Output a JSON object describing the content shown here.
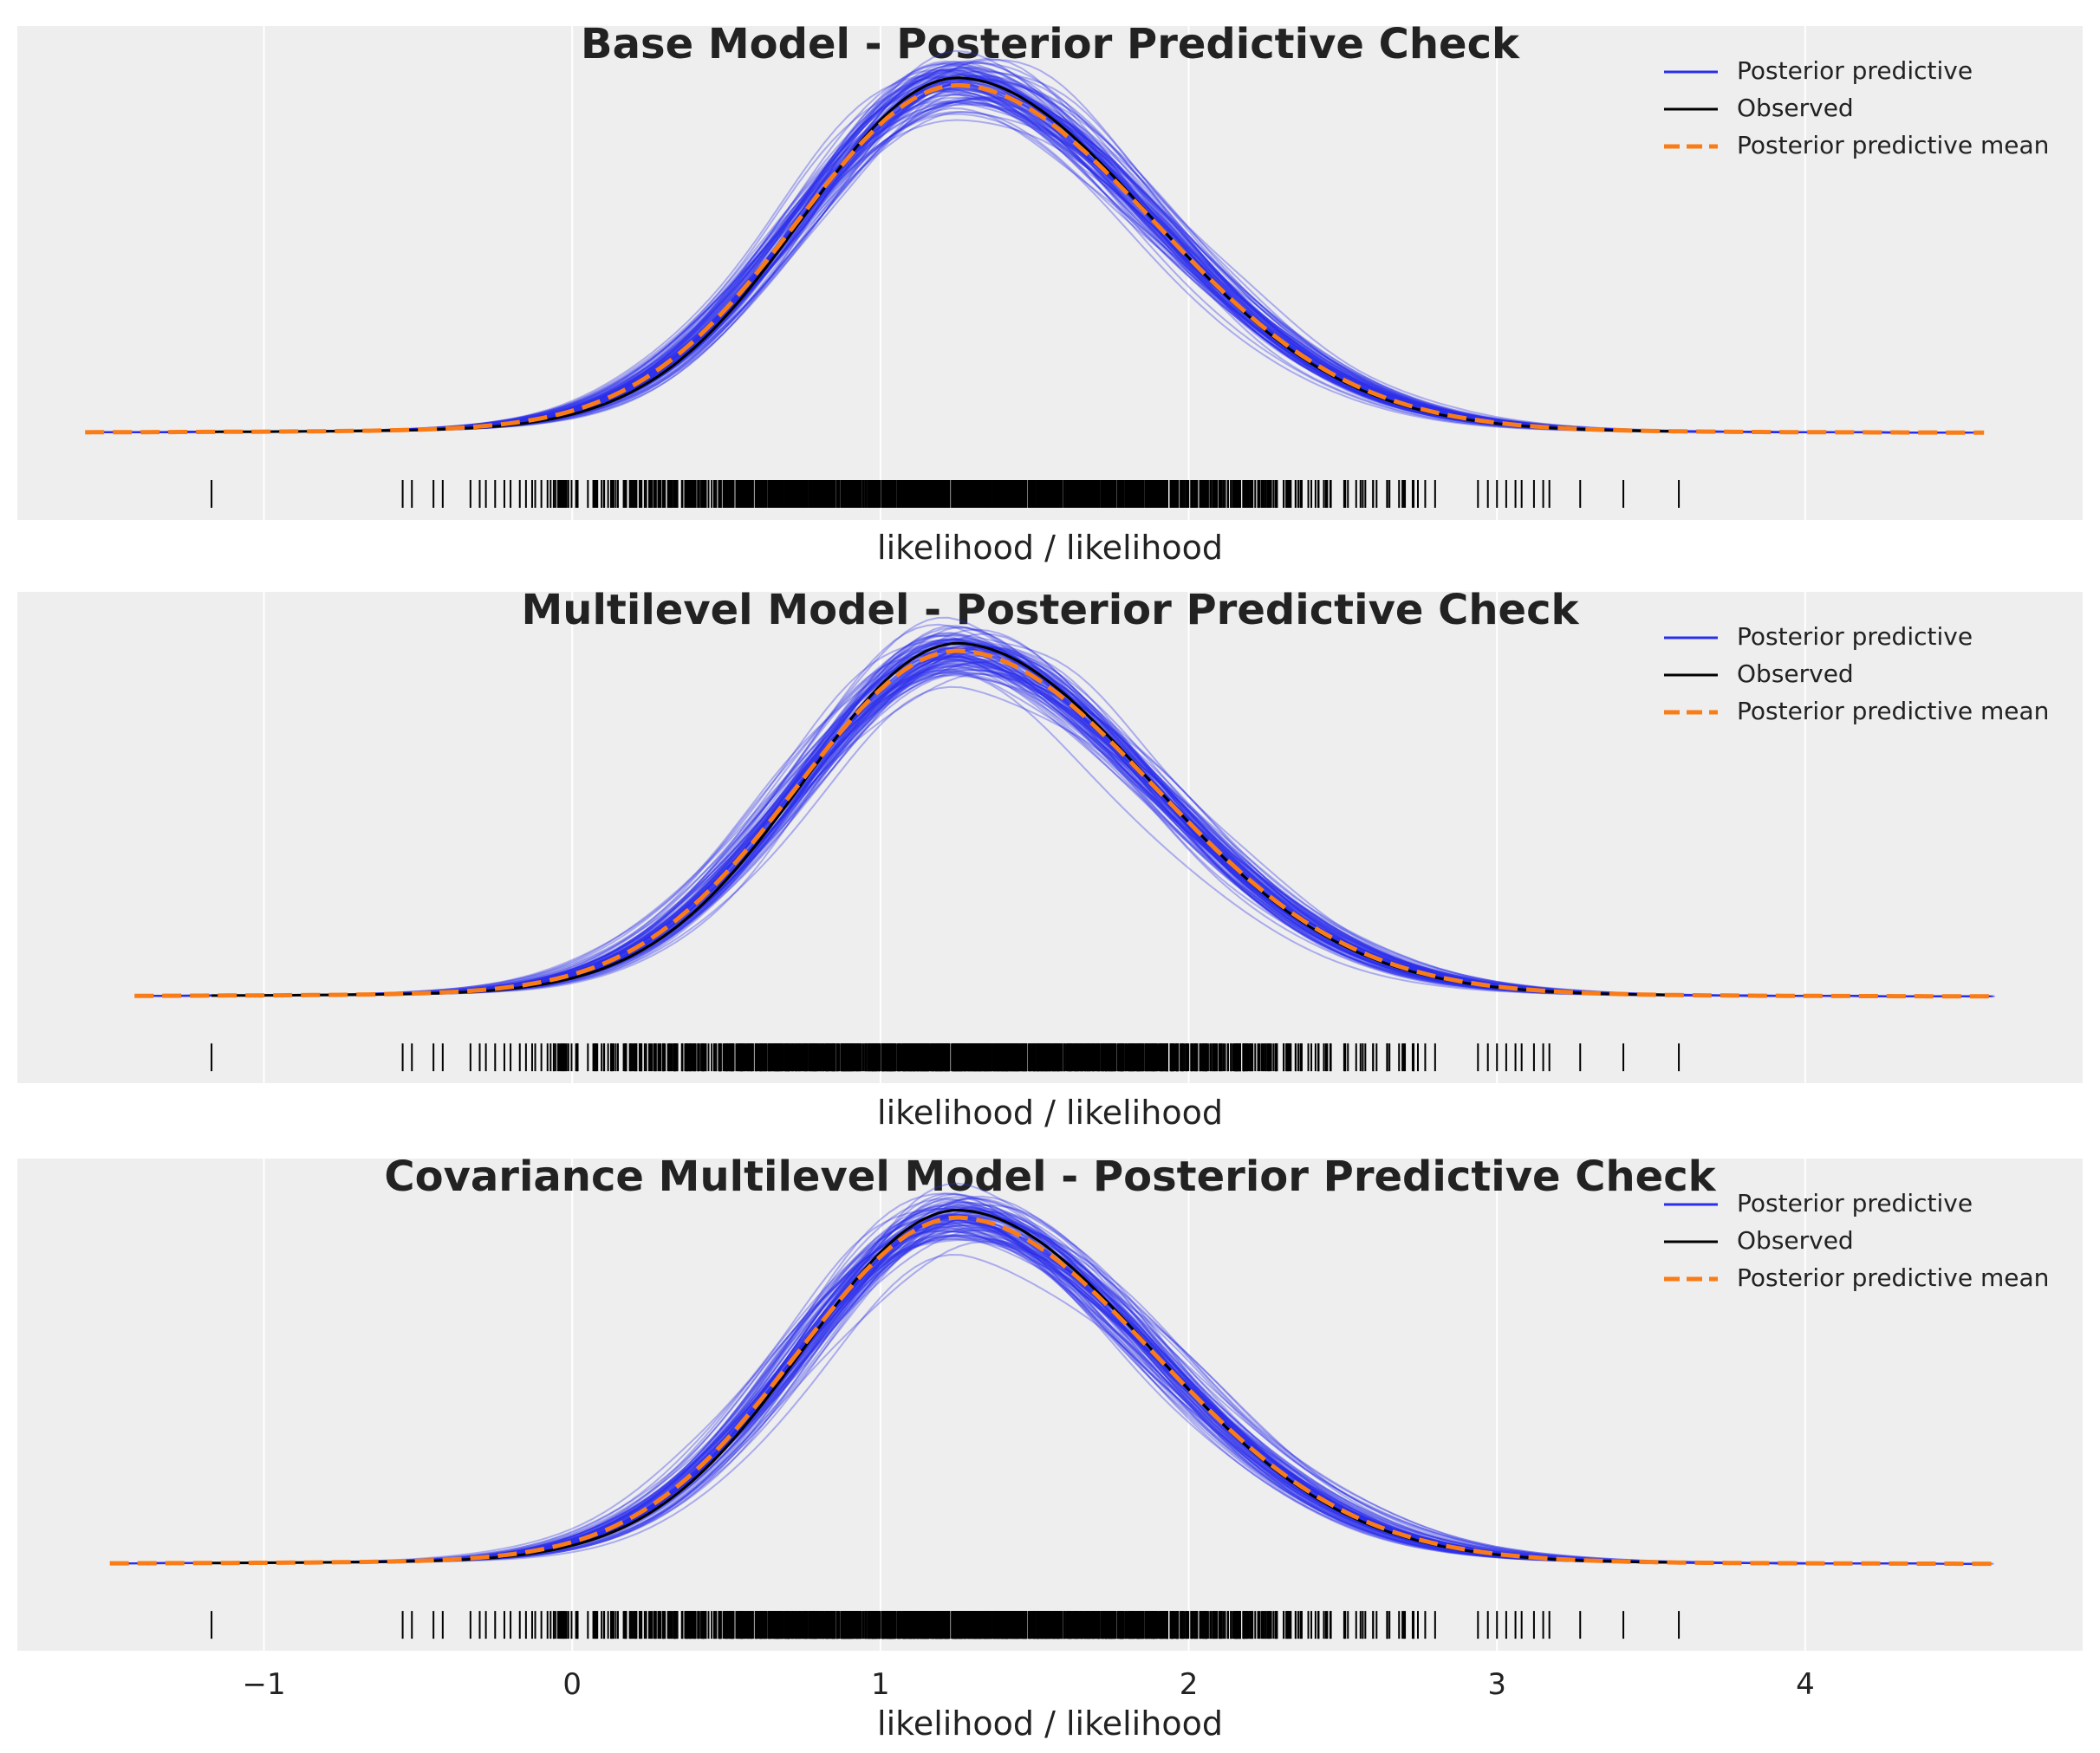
{
  "colors": {
    "background": "#eeeeee",
    "grid": "#ffffff",
    "posterior_predictive": "#2a2eec",
    "observed": "#000000",
    "mean": "#fa7c17"
  },
  "chart_data": [
    {
      "type": "line",
      "title": "Base Model - Posterior Predictive Check",
      "xlabel": "likelihood / likelihood",
      "ylabel": "",
      "xlim": [
        -1.8,
        4.9
      ],
      "xticks": [
        -1,
        0,
        1,
        2,
        3,
        4
      ],
      "show_xtick_labels": false,
      "grid": "x",
      "legend": {
        "placement": "top-right",
        "entries": [
          "Posterior predictive",
          "Observed",
          "Posterior predictive mean"
        ]
      },
      "mean_range": [
        -1.58,
        4.58
      ],
      "observed_peak": 0.95,
      "mean_peak": 0.93,
      "mode": 1.25
    },
    {
      "type": "line",
      "title": "Multilevel Model - Posterior Predictive Check",
      "xlabel": "likelihood / likelihood",
      "ylabel": "",
      "xlim": [
        -1.8,
        4.9
      ],
      "xticks": [
        -1,
        0,
        1,
        2,
        3,
        4
      ],
      "show_xtick_labels": false,
      "grid": "x",
      "legend": {
        "placement": "top-right",
        "entries": [
          "Posterior predictive",
          "Observed",
          "Posterior predictive mean"
        ]
      },
      "mean_range": [
        -1.42,
        4.62
      ],
      "observed_peak": 0.95,
      "mean_peak": 0.93,
      "mode": 1.25
    },
    {
      "type": "line",
      "title": "Covariance Multilevel Model - Posterior Predictive Check",
      "xlabel": "likelihood / likelihood",
      "ylabel": "",
      "xlim": [
        -1.8,
        4.9
      ],
      "xticks": [
        -1,
        0,
        1,
        2,
        3,
        4
      ],
      "xtick_labels": [
        "−1",
        "0",
        "1",
        "2",
        "3",
        "4"
      ],
      "show_xtick_labels": true,
      "grid": "x",
      "legend": {
        "placement": "top-right",
        "entries": [
          "Posterior predictive",
          "Observed",
          "Posterior predictive mean"
        ]
      },
      "mean_range": [
        -1.5,
        4.62
      ],
      "observed_peak": 0.95,
      "mean_peak": 0.93,
      "mode": 1.25
    }
  ],
  "rug_observations": [
    -1.17,
    -0.55,
    -0.52,
    -0.45,
    -0.42,
    -0.33,
    -0.3,
    -0.28,
    -0.25,
    -0.22,
    -0.2,
    -0.17,
    -0.15,
    -0.13,
    -0.12,
    -0.1,
    -0.08,
    -0.07,
    3.0,
    3.03,
    3.06,
    3.08,
    3.12,
    3.15,
    3.17,
    3.27,
    3.41,
    3.59
  ]
}
